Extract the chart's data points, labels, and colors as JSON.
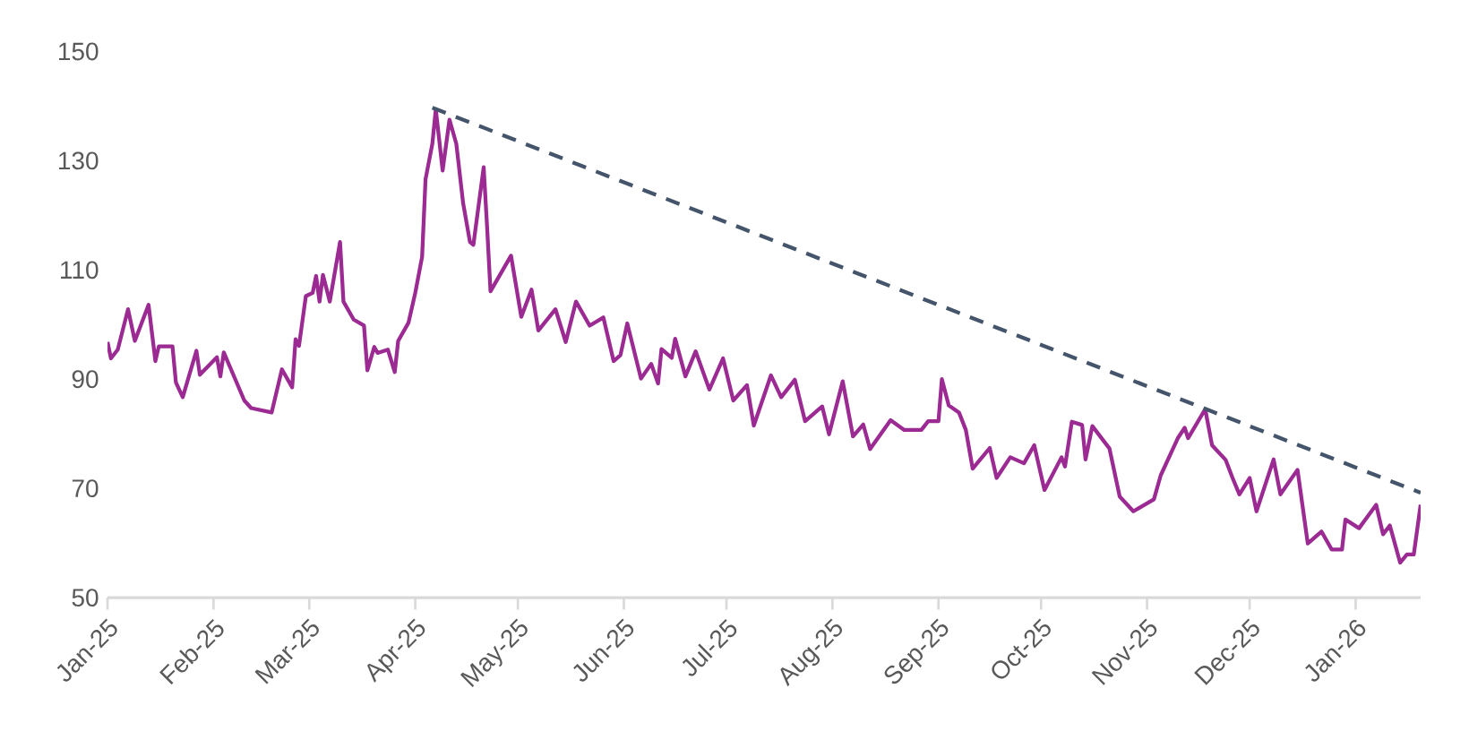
{
  "chart_data": {
    "type": "line",
    "xlim": [
      "2025-01-01",
      "2026-01-20"
    ],
    "ylim": [
      50,
      150
    ],
    "yticks": [
      50,
      70,
      90,
      110,
      130,
      150
    ],
    "xticks": [
      {
        "value": "2025-01-01",
        "label": "Jan-25"
      },
      {
        "value": "2025-02-01",
        "label": "Feb-25"
      },
      {
        "value": "2025-03-01",
        "label": "Mar-25"
      },
      {
        "value": "2025-04-01",
        "label": "Apr-25"
      },
      {
        "value": "2025-05-01",
        "label": "May-25"
      },
      {
        "value": "2025-06-01",
        "label": "Jun-25"
      },
      {
        "value": "2025-07-01",
        "label": "Jul-25"
      },
      {
        "value": "2025-08-01",
        "label": "Aug-25"
      },
      {
        "value": "2025-09-01",
        "label": "Sep-25"
      },
      {
        "value": "2025-10-01",
        "label": "Oct-25"
      },
      {
        "value": "2025-11-01",
        "label": "Nov-25"
      },
      {
        "value": "2025-12-01",
        "label": "Dec-25"
      },
      {
        "value": "2026-01-01",
        "label": "Jan-26"
      }
    ],
    "series": [
      {
        "color": "#9b2a93",
        "line_style": "solid",
        "x": [
          "2025-01-01",
          "2025-01-02",
          "2025-01-04",
          "2025-01-07",
          "2025-01-09",
          "2025-01-13",
          "2025-01-15",
          "2025-01-16",
          "2025-01-20",
          "2025-01-21",
          "2025-01-23",
          "2025-01-27",
          "2025-01-28",
          "2025-02-02",
          "2025-02-03",
          "2025-02-04",
          "2025-02-10",
          "2025-02-12",
          "2025-02-18",
          "2025-02-21",
          "2025-02-24",
          "2025-02-25",
          "2025-02-26",
          "2025-02-28",
          "2025-03-02",
          "2025-03-03",
          "2025-03-04",
          "2025-03-05",
          "2025-03-07",
          "2025-03-10",
          "2025-03-11",
          "2025-03-14",
          "2025-03-17",
          "2025-03-18",
          "2025-03-20",
          "2025-03-21",
          "2025-03-24",
          "2025-03-26",
          "2025-03-27",
          "2025-03-30",
          "2025-04-01",
          "2025-04-03",
          "2025-04-04",
          "2025-04-06",
          "2025-04-07",
          "2025-04-09",
          "2025-04-11",
          "2025-04-13",
          "2025-04-15",
          "2025-04-17",
          "2025-04-18",
          "2025-04-21",
          "2025-04-22",
          "2025-04-23",
          "2025-04-29",
          "2025-05-02",
          "2025-05-05",
          "2025-05-07",
          "2025-05-12",
          "2025-05-15",
          "2025-05-18",
          "2025-05-22",
          "2025-05-26",
          "2025-05-29",
          "2025-05-31",
          "2025-06-02",
          "2025-06-06",
          "2025-06-09",
          "2025-06-11",
          "2025-06-12",
          "2025-06-15",
          "2025-06-16",
          "2025-06-19",
          "2025-06-22",
          "2025-06-26",
          "2025-06-30",
          "2025-07-03",
          "2025-07-07",
          "2025-07-09",
          "2025-07-14",
          "2025-07-17",
          "2025-07-21",
          "2025-07-24",
          "2025-07-29",
          "2025-07-31",
          "2025-08-04",
          "2025-08-07",
          "2025-08-10",
          "2025-08-12",
          "2025-08-18",
          "2025-08-22",
          "2025-08-27",
          "2025-08-29",
          "2025-09-01",
          "2025-09-02",
          "2025-09-04",
          "2025-09-07",
          "2025-09-09",
          "2025-09-11",
          "2025-09-16",
          "2025-09-18",
          "2025-09-22",
          "2025-09-26",
          "2025-09-29",
          "2025-10-02",
          "2025-10-07",
          "2025-10-08",
          "2025-10-10",
          "2025-10-13",
          "2025-10-14",
          "2025-10-16",
          "2025-10-21",
          "2025-10-24",
          "2025-10-28",
          "2025-11-03",
          "2025-11-05",
          "2025-11-10",
          "2025-11-12",
          "2025-11-13",
          "2025-11-18",
          "2025-11-20",
          "2025-11-24",
          "2025-11-26",
          "2025-11-28",
          "2025-12-01",
          "2025-12-03",
          "2025-12-08",
          "2025-12-10",
          "2025-12-15",
          "2025-12-18",
          "2025-12-22",
          "2025-12-25",
          "2025-12-28",
          "2025-12-29",
          "2026-01-02",
          "2026-01-07",
          "2026-01-09",
          "2026-01-11",
          "2026-01-14",
          "2026-01-16",
          "2026-01-18",
          "2026-01-20"
        ],
        "values": [
          96.8,
          93.8,
          95.4,
          102.8,
          97,
          103.6,
          93.3,
          96,
          96,
          89.4,
          86.7,
          95.2,
          90.8,
          94,
          90.5,
          94.9,
          86.1,
          84.7,
          83.9,
          91.8,
          88.5,
          97.3,
          96.1,
          105.2,
          105.8,
          108.9,
          104.2,
          109.1,
          104.2,
          115.1,
          104.2,
          100.9,
          99.8,
          91.6,
          95.9,
          94.8,
          95.4,
          91.3,
          97,
          100.3,
          105.8,
          112.4,
          126.6,
          133.1,
          139.4,
          128.2,
          137.5,
          133.1,
          122.2,
          115.1,
          114.6,
          128.8,
          117.9,
          106.1,
          112.6,
          101.4,
          106.4,
          98.9,
          102.8,
          96.8,
          104.2,
          99.8,
          101.3,
          93.3,
          94.4,
          100.2,
          90.1,
          92.8,
          89.2,
          95.5,
          93.9,
          97.4,
          90.5,
          95.1,
          88.1,
          93.8,
          86.1,
          88.9,
          81.5,
          90.7,
          86.7,
          89.9,
          82.3,
          85,
          79.9,
          89.6,
          79.5,
          81.7,
          77.2,
          82.5,
          80.7,
          80.7,
          82.3,
          82.3,
          90,
          85.2,
          83.9,
          80.7,
          73.6,
          77.4,
          71.9,
          75.7,
          74.6,
          77.9,
          69.7,
          75.7,
          74,
          82.2,
          81.6,
          75.3,
          81.4,
          77.3,
          68.5,
          65.8,
          68,
          72.4,
          79.2,
          81.1,
          79.2,
          84.5,
          77.9,
          75.2,
          71.9,
          68.9,
          71.9,
          65.8,
          75.3,
          68.9,
          73.4,
          59.9,
          62.1,
          58.8,
          58.8,
          64.3,
          62.7,
          67,
          61.6,
          63.2,
          56.4,
          57.9,
          57.9,
          67
        ]
      },
      {
        "color": "#44546a",
        "line_style": "dashed",
        "x": [
          "2025-04-06",
          "2026-01-20"
        ],
        "values": [
          139.7,
          69.2
        ]
      }
    ]
  }
}
